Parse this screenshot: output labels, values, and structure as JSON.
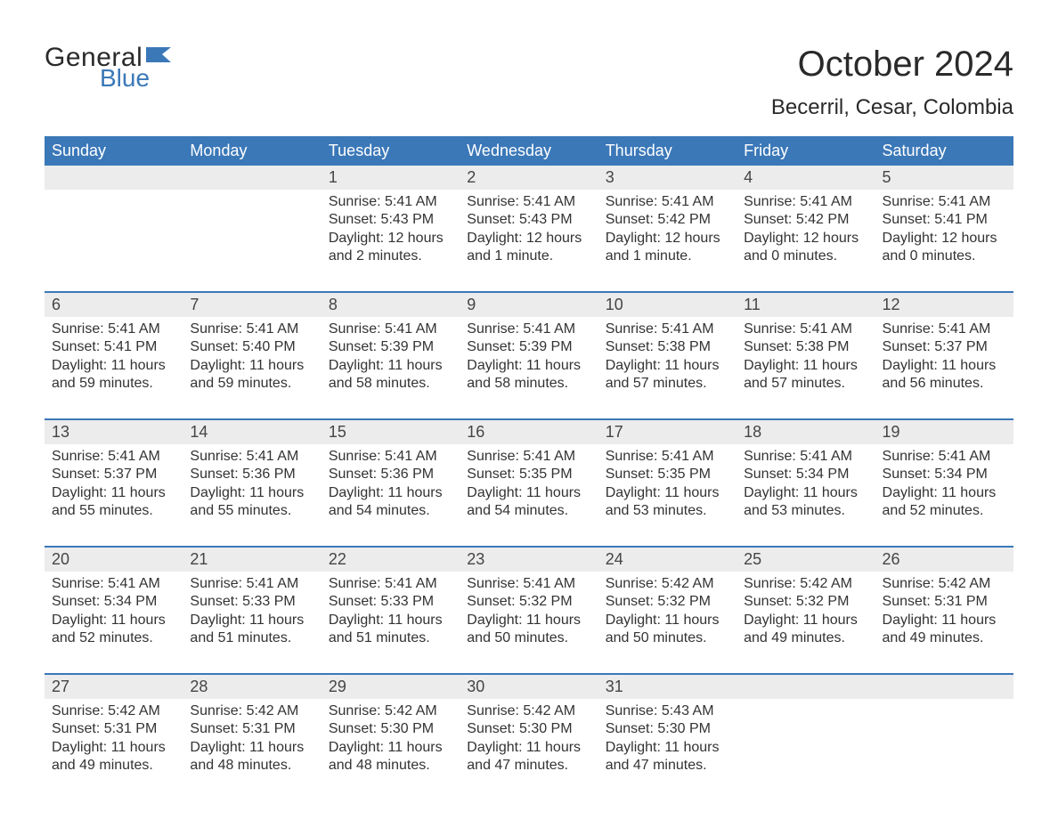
{
  "brand": {
    "word1": "General",
    "word2": "Blue",
    "flag_color": "#3b78b8",
    "text_dark": "#2a2a2a"
  },
  "colors": {
    "header_bg": "#3b78b8",
    "header_text": "#ffffff",
    "daynum_bg": "#ececec",
    "week_border": "#3b78b8",
    "body_text": "#333333",
    "page_bg": "#ffffff"
  },
  "typography": {
    "month_title_fontsize": 40,
    "location_fontsize": 24,
    "weekday_fontsize": 18,
    "daynum_fontsize": 18,
    "cell_fontsize": 16
  },
  "title": "October 2024",
  "location": "Becerril, Cesar, Colombia",
  "weekdays": [
    "Sunday",
    "Monday",
    "Tuesday",
    "Wednesday",
    "Thursday",
    "Friday",
    "Saturday"
  ],
  "weeks": [
    [
      {
        "n": "",
        "sunrise": "",
        "sunset": "",
        "daylight": ""
      },
      {
        "n": "",
        "sunrise": "",
        "sunset": "",
        "daylight": ""
      },
      {
        "n": "1",
        "sunrise": "Sunrise: 5:41 AM",
        "sunset": "Sunset: 5:43 PM",
        "daylight": "Daylight: 12 hours and 2 minutes."
      },
      {
        "n": "2",
        "sunrise": "Sunrise: 5:41 AM",
        "sunset": "Sunset: 5:43 PM",
        "daylight": "Daylight: 12 hours and 1 minute."
      },
      {
        "n": "3",
        "sunrise": "Sunrise: 5:41 AM",
        "sunset": "Sunset: 5:42 PM",
        "daylight": "Daylight: 12 hours and 1 minute."
      },
      {
        "n": "4",
        "sunrise": "Sunrise: 5:41 AM",
        "sunset": "Sunset: 5:42 PM",
        "daylight": "Daylight: 12 hours and 0 minutes."
      },
      {
        "n": "5",
        "sunrise": "Sunrise: 5:41 AM",
        "sunset": "Sunset: 5:41 PM",
        "daylight": "Daylight: 12 hours and 0 minutes."
      }
    ],
    [
      {
        "n": "6",
        "sunrise": "Sunrise: 5:41 AM",
        "sunset": "Sunset: 5:41 PM",
        "daylight": "Daylight: 11 hours and 59 minutes."
      },
      {
        "n": "7",
        "sunrise": "Sunrise: 5:41 AM",
        "sunset": "Sunset: 5:40 PM",
        "daylight": "Daylight: 11 hours and 59 minutes."
      },
      {
        "n": "8",
        "sunrise": "Sunrise: 5:41 AM",
        "sunset": "Sunset: 5:39 PM",
        "daylight": "Daylight: 11 hours and 58 minutes."
      },
      {
        "n": "9",
        "sunrise": "Sunrise: 5:41 AM",
        "sunset": "Sunset: 5:39 PM",
        "daylight": "Daylight: 11 hours and 58 minutes."
      },
      {
        "n": "10",
        "sunrise": "Sunrise: 5:41 AM",
        "sunset": "Sunset: 5:38 PM",
        "daylight": "Daylight: 11 hours and 57 minutes."
      },
      {
        "n": "11",
        "sunrise": "Sunrise: 5:41 AM",
        "sunset": "Sunset: 5:38 PM",
        "daylight": "Daylight: 11 hours and 57 minutes."
      },
      {
        "n": "12",
        "sunrise": "Sunrise: 5:41 AM",
        "sunset": "Sunset: 5:37 PM",
        "daylight": "Daylight: 11 hours and 56 minutes."
      }
    ],
    [
      {
        "n": "13",
        "sunrise": "Sunrise: 5:41 AM",
        "sunset": "Sunset: 5:37 PM",
        "daylight": "Daylight: 11 hours and 55 minutes."
      },
      {
        "n": "14",
        "sunrise": "Sunrise: 5:41 AM",
        "sunset": "Sunset: 5:36 PM",
        "daylight": "Daylight: 11 hours and 55 minutes."
      },
      {
        "n": "15",
        "sunrise": "Sunrise: 5:41 AM",
        "sunset": "Sunset: 5:36 PM",
        "daylight": "Daylight: 11 hours and 54 minutes."
      },
      {
        "n": "16",
        "sunrise": "Sunrise: 5:41 AM",
        "sunset": "Sunset: 5:35 PM",
        "daylight": "Daylight: 11 hours and 54 minutes."
      },
      {
        "n": "17",
        "sunrise": "Sunrise: 5:41 AM",
        "sunset": "Sunset: 5:35 PM",
        "daylight": "Daylight: 11 hours and 53 minutes."
      },
      {
        "n": "18",
        "sunrise": "Sunrise: 5:41 AM",
        "sunset": "Sunset: 5:34 PM",
        "daylight": "Daylight: 11 hours and 53 minutes."
      },
      {
        "n": "19",
        "sunrise": "Sunrise: 5:41 AM",
        "sunset": "Sunset: 5:34 PM",
        "daylight": "Daylight: 11 hours and 52 minutes."
      }
    ],
    [
      {
        "n": "20",
        "sunrise": "Sunrise: 5:41 AM",
        "sunset": "Sunset: 5:34 PM",
        "daylight": "Daylight: 11 hours and 52 minutes."
      },
      {
        "n": "21",
        "sunrise": "Sunrise: 5:41 AM",
        "sunset": "Sunset: 5:33 PM",
        "daylight": "Daylight: 11 hours and 51 minutes."
      },
      {
        "n": "22",
        "sunrise": "Sunrise: 5:41 AM",
        "sunset": "Sunset: 5:33 PM",
        "daylight": "Daylight: 11 hours and 51 minutes."
      },
      {
        "n": "23",
        "sunrise": "Sunrise: 5:41 AM",
        "sunset": "Sunset: 5:32 PM",
        "daylight": "Daylight: 11 hours and 50 minutes."
      },
      {
        "n": "24",
        "sunrise": "Sunrise: 5:42 AM",
        "sunset": "Sunset: 5:32 PM",
        "daylight": "Daylight: 11 hours and 50 minutes."
      },
      {
        "n": "25",
        "sunrise": "Sunrise: 5:42 AM",
        "sunset": "Sunset: 5:32 PM",
        "daylight": "Daylight: 11 hours and 49 minutes."
      },
      {
        "n": "26",
        "sunrise": "Sunrise: 5:42 AM",
        "sunset": "Sunset: 5:31 PM",
        "daylight": "Daylight: 11 hours and 49 minutes."
      }
    ],
    [
      {
        "n": "27",
        "sunrise": "Sunrise: 5:42 AM",
        "sunset": "Sunset: 5:31 PM",
        "daylight": "Daylight: 11 hours and 49 minutes."
      },
      {
        "n": "28",
        "sunrise": "Sunrise: 5:42 AM",
        "sunset": "Sunset: 5:31 PM",
        "daylight": "Daylight: 11 hours and 48 minutes."
      },
      {
        "n": "29",
        "sunrise": "Sunrise: 5:42 AM",
        "sunset": "Sunset: 5:30 PM",
        "daylight": "Daylight: 11 hours and 48 minutes."
      },
      {
        "n": "30",
        "sunrise": "Sunrise: 5:42 AM",
        "sunset": "Sunset: 5:30 PM",
        "daylight": "Daylight: 11 hours and 47 minutes."
      },
      {
        "n": "31",
        "sunrise": "Sunrise: 5:43 AM",
        "sunset": "Sunset: 5:30 PM",
        "daylight": "Daylight: 11 hours and 47 minutes."
      },
      {
        "n": "",
        "sunrise": "",
        "sunset": "",
        "daylight": ""
      },
      {
        "n": "",
        "sunrise": "",
        "sunset": "",
        "daylight": ""
      }
    ]
  ]
}
